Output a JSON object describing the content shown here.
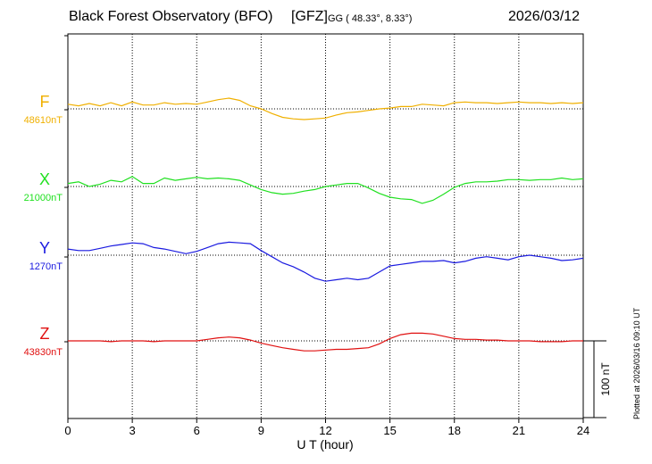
{
  "header": {
    "title": "Black Forest Observatory (BFO)",
    "agency": "[GFZ]",
    "coords": "GG ( 48.33°,   8.33°)",
    "date": "2026/03/12"
  },
  "footer": {
    "plotted": "Plotted at 2026/03/16 09:10 UT"
  },
  "chart_data": {
    "type": "line",
    "title": "Black Forest Observatory (BFO)",
    "xlabel": "U T (hour)",
    "xlim": [
      0,
      24
    ],
    "xticks": [
      "0",
      "3",
      "6",
      "9",
      "12",
      "15",
      "18",
      "21",
      "24"
    ],
    "scale_bar": {
      "label": "100 nT",
      "value": 100
    },
    "grid": true,
    "series": [
      {
        "name": "F",
        "baseline_label": "48610nT",
        "baseline": 48610,
        "color": "#f0b000",
        "x": [
          0,
          0.5,
          1,
          1.5,
          2,
          2.5,
          3,
          3.5,
          4,
          4.5,
          5,
          5.5,
          6,
          6.5,
          7,
          7.5,
          8,
          8.5,
          9,
          9.5,
          10,
          10.5,
          11,
          11.5,
          12,
          12.5,
          13,
          13.5,
          14,
          14.5,
          15,
          15.5,
          16,
          16.5,
          17,
          17.5,
          18,
          18.5,
          19,
          19.5,
          20,
          20.5,
          21,
          21.5,
          22,
          22.5,
          23,
          23.5,
          24
        ],
        "y": [
          48616,
          48614,
          48617,
          48614,
          48618,
          48614,
          48619,
          48615,
          48615,
          48618,
          48616,
          48617,
          48616,
          48619,
          48622,
          48624,
          48621,
          48614,
          48610,
          48604,
          48599,
          48597,
          48596,
          48597,
          48598,
          48602,
          48605,
          48606,
          48608,
          48610,
          48611,
          48613,
          48613,
          48616,
          48615,
          48614,
          48618,
          48619,
          48618,
          48618,
          48617,
          48618,
          48619,
          48618,
          48618,
          48617,
          48618,
          48617,
          48618
        ]
      },
      {
        "name": "X",
        "baseline_label": "21000nT",
        "baseline": 21000,
        "color": "#20e020",
        "x": [
          0,
          0.5,
          1,
          1.5,
          2,
          2.5,
          3,
          3.5,
          4,
          4.5,
          5,
          5.5,
          6,
          6.5,
          7,
          7.5,
          8,
          8.5,
          9,
          9.5,
          10,
          10.5,
          11,
          11.5,
          12,
          12.5,
          13,
          13.5,
          14,
          14.5,
          15,
          15.5,
          16,
          16.5,
          17,
          17.5,
          18,
          18.5,
          19,
          19.5,
          20,
          20.5,
          21,
          21.5,
          22,
          22.5,
          23,
          23.5,
          24
        ],
        "y": [
          21004,
          21006,
          21000,
          21003,
          21008,
          21006,
          21013,
          21004,
          21004,
          21011,
          21008,
          21010,
          21012,
          21010,
          21011,
          21010,
          21008,
          21002,
          20996,
          20992,
          20990,
          20991,
          20994,
          20996,
          21000,
          21002,
          21004,
          21004,
          20998,
          20991,
          20986,
          20984,
          20983,
          20978,
          20982,
          20990,
          20999,
          21004,
          21006,
          21006,
          21007,
          21009,
          21009,
          21008,
          21009,
          21009,
          21011,
          21009,
          21010
        ]
      },
      {
        "name": "Y",
        "baseline_label": "1270nT",
        "baseline": 1270,
        "color": "#1a1ae0",
        "x": [
          0,
          0.5,
          1,
          1.5,
          2,
          2.5,
          3,
          3.5,
          4,
          4.5,
          5,
          5.5,
          6,
          6.5,
          7,
          7.5,
          8,
          8.5,
          9,
          9.5,
          10,
          10.5,
          11,
          11.5,
          12,
          12.5,
          13,
          13.5,
          14,
          14.5,
          15,
          15.5,
          16,
          16.5,
          17,
          17.5,
          18,
          18.5,
          19,
          19.5,
          20,
          20.5,
          21,
          21.5,
          22,
          22.5,
          23,
          23.5,
          24
        ],
        "y": [
          1278,
          1276,
          1276,
          1279,
          1282,
          1284,
          1286,
          1285,
          1280,
          1278,
          1275,
          1272,
          1275,
          1280,
          1285,
          1287,
          1286,
          1285,
          1276,
          1268,
          1260,
          1255,
          1248,
          1240,
          1236,
          1238,
          1240,
          1238,
          1240,
          1248,
          1256,
          1258,
          1260,
          1262,
          1262,
          1263,
          1260,
          1262,
          1266,
          1268,
          1266,
          1264,
          1268,
          1270,
          1268,
          1266,
          1263,
          1264,
          1266
        ]
      },
      {
        "name": "Z",
        "baseline_label": "43830nT",
        "baseline": 43830,
        "color": "#e01010",
        "x": [
          0,
          0.5,
          1,
          1.5,
          2,
          2.5,
          3,
          3.5,
          4,
          4.5,
          5,
          5.5,
          6,
          6.5,
          7,
          7.5,
          8,
          8.5,
          9,
          9.5,
          10,
          10.5,
          11,
          11.5,
          12,
          12.5,
          13,
          13.5,
          14,
          14.5,
          15,
          15.5,
          16,
          16.5,
          17,
          17.5,
          18,
          18.5,
          19,
          19.5,
          20,
          20.5,
          21,
          21.5,
          22,
          22.5,
          23,
          23.5,
          24
        ],
        "y": [
          43830,
          43830,
          43830,
          43830,
          43829,
          43830,
          43830,
          43830,
          43829,
          43830,
          43830,
          43830,
          43830,
          43832,
          43834,
          43835,
          43834,
          43831,
          43827,
          43824,
          43821,
          43819,
          43817,
          43817,
          43818,
          43819,
          43819,
          43820,
          43821,
          43826,
          43833,
          43838,
          43840,
          43840,
          43839,
          43836,
          43833,
          43832,
          43832,
          43831,
          43831,
          43830,
          43830,
          43830,
          43829,
          43829,
          43829,
          43830,
          43830
        ]
      }
    ]
  }
}
